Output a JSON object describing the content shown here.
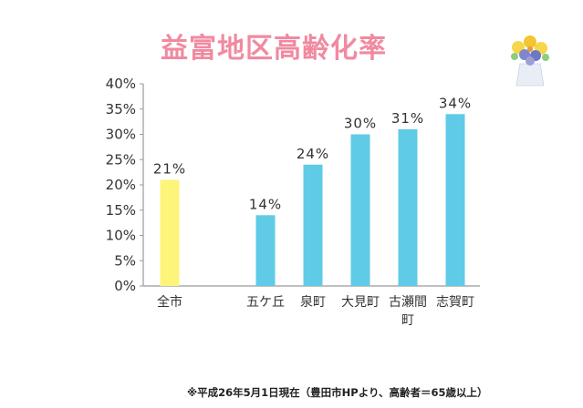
{
  "chart_data": {
    "type": "bar",
    "title": "益富地区高齢化率",
    "categories": [
      "全市",
      "",
      "五ケ丘",
      "泉町",
      "大見町",
      "古瀬間町",
      "志賀町"
    ],
    "category_labels": [
      [
        "全市"
      ],
      [
        ""
      ],
      [
        "五ケ丘"
      ],
      [
        "泉町"
      ],
      [
        "大見町"
      ],
      [
        "古瀬間",
        "町"
      ],
      [
        "志賀町"
      ]
    ],
    "values": [
      21,
      null,
      14,
      24,
      30,
      31,
      34
    ],
    "data_labels": [
      "21%",
      "",
      "14%",
      "24%",
      "30%",
      "31%",
      "34%"
    ],
    "bar_colors": [
      "#fdf57a",
      null,
      "#5fcbe6",
      "#5fcbe6",
      "#5fcbe6",
      "#5fcbe6",
      "#5fcbe6"
    ],
    "ylim": [
      0,
      40
    ],
    "yticks": [
      "0%",
      "5%",
      "10%",
      "15%",
      "20%",
      "25%",
      "30%",
      "35%",
      "40%"
    ],
    "xlabel": "",
    "ylabel": "",
    "grid": false,
    "note": "※平成26年5月1日現在（豊田市HPより、高齢者＝65歳以上）"
  },
  "colors": {
    "title": "#f08aa0",
    "axis": "#9a9a9a",
    "tick_text": "#333333",
    "citywide_bar": "#fdf57a",
    "district_bar": "#5fcbe6"
  },
  "decoration_icon": "flower-bouquet-icon"
}
